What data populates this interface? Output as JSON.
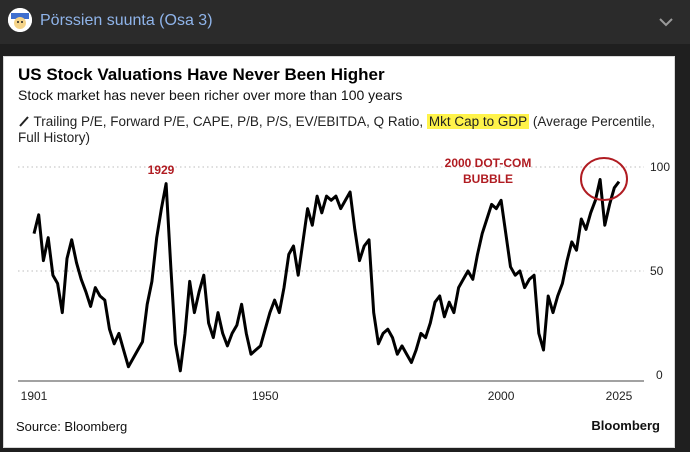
{
  "header": {
    "topic_title": "Pörssien suunta (Osa 3)"
  },
  "chart": {
    "title": "US Stock Valuations Have Never Been Higher",
    "subtitle": "Stock market has never been richer over more than 100 years",
    "measures_prefix": "Trailing P/E, Forward P/E, CAPE, P/B, P/S, EV/EBITDA, Q Ratio, ",
    "measures_highlight": "Mkt Cap to GDP",
    "measures_suffix": " (Average Percentile, Full History)",
    "source": "Source: Bloomberg",
    "brand": "Bloomberg",
    "annotations": {
      "a1929": "1929",
      "dotcom_line1": "2000 DOT-COM",
      "dotcom_line2": "BUBBLE"
    },
    "annotation_color": "#b01c22"
  },
  "chart_data": {
    "type": "line",
    "title": "US Stock Valuations Have Never Been Higher",
    "subtitle": "Stock market has never been richer over more than 100 years",
    "xlabel": "",
    "ylabel": "",
    "xlim": [
      1901,
      2025
    ],
    "ylim": [
      0,
      100
    ],
    "x_ticks": [
      1901,
      1950,
      2000,
      2025
    ],
    "y_ticks": [
      0,
      50,
      100
    ],
    "grid": "dotted horizontal at 50 and 100",
    "series": [
      {
        "name": "Average Percentile",
        "x": [
          1901,
          1902,
          1903,
          1904,
          1905,
          1906,
          1907,
          1908,
          1909,
          1910,
          1911,
          1912,
          1913,
          1914,
          1915,
          1916,
          1917,
          1918,
          1919,
          1920,
          1921,
          1922,
          1923,
          1924,
          1925,
          1926,
          1927,
          1928,
          1929,
          1930,
          1931,
          1932,
          1933,
          1934,
          1935,
          1936,
          1937,
          1938,
          1939,
          1940,
          1941,
          1942,
          1943,
          1944,
          1945,
          1946,
          1947,
          1948,
          1949,
          1950,
          1951,
          1952,
          1953,
          1954,
          1955,
          1956,
          1957,
          1958,
          1959,
          1960,
          1961,
          1962,
          1963,
          1964,
          1965,
          1966,
          1967,
          1968,
          1969,
          1970,
          1971,
          1972,
          1973,
          1974,
          1975,
          1976,
          1977,
          1978,
          1979,
          1980,
          1981,
          1982,
          1983,
          1984,
          1985,
          1986,
          1987,
          1988,
          1989,
          1990,
          1991,
          1992,
          1993,
          1994,
          1995,
          1996,
          1997,
          1998,
          1999,
          2000,
          2001,
          2002,
          2003,
          2004,
          2005,
          2006,
          2007,
          2008,
          2009,
          2010,
          2011,
          2012,
          2013,
          2014,
          2015,
          2016,
          2017,
          2018,
          2019,
          2020,
          2021,
          2022,
          2023,
          2024,
          2025
        ],
        "values": [
          68,
          77,
          55,
          66,
          48,
          44,
          30,
          56,
          65,
          54,
          46,
          40,
          33,
          42,
          38,
          36,
          22,
          15,
          20,
          12,
          4,
          8,
          12,
          16,
          34,
          45,
          66,
          80,
          92,
          52,
          15,
          2,
          20,
          45,
          30,
          40,
          48,
          25,
          18,
          30,
          20,
          14,
          20,
          24,
          34,
          20,
          10,
          12,
          14,
          22,
          30,
          36,
          30,
          42,
          58,
          62,
          48,
          64,
          80,
          72,
          86,
          78,
          86,
          84,
          86,
          80,
          84,
          88,
          70,
          55,
          62,
          65,
          30,
          15,
          20,
          22,
          18,
          10,
          14,
          10,
          6,
          12,
          20,
          18,
          25,
          35,
          38,
          28,
          35,
          30,
          42,
          46,
          50,
          46,
          58,
          68,
          75,
          82,
          80,
          84,
          68,
          52,
          48,
          50,
          42,
          46,
          48,
          20,
          12,
          38,
          30,
          38,
          44,
          55,
          64,
          60,
          75,
          70,
          78,
          84,
          94,
          72,
          82,
          90,
          93
        ]
      }
    ]
  }
}
